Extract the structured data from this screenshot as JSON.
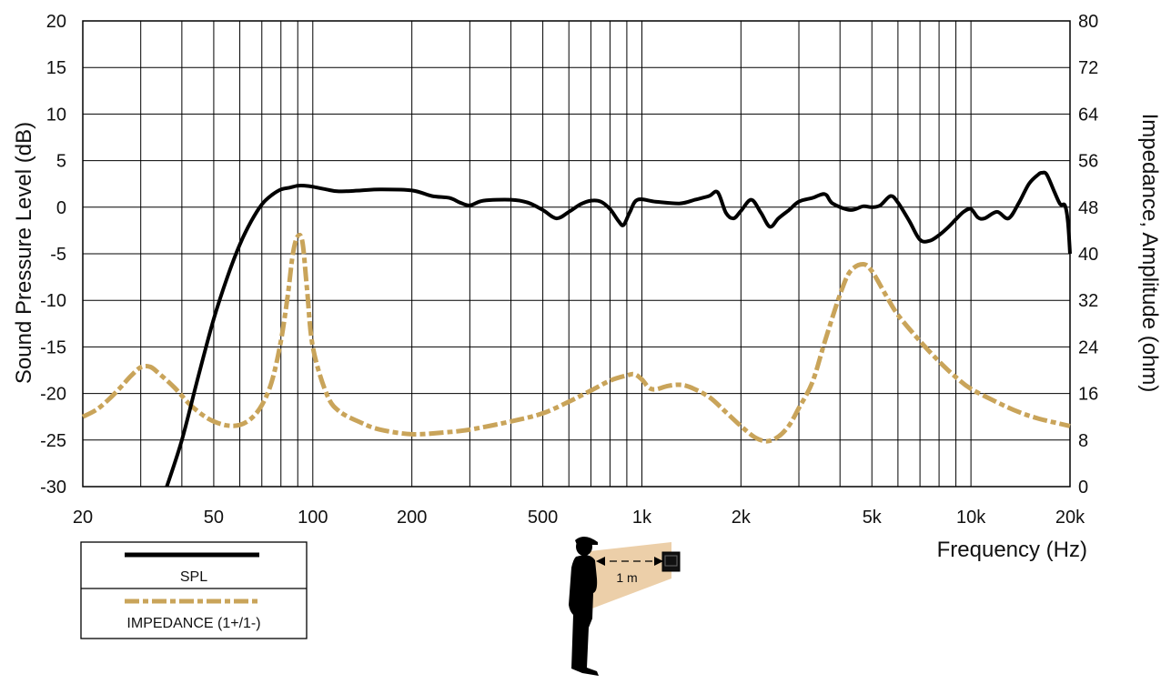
{
  "colors": {
    "spl": "#000000",
    "impedance": "#c9a45a",
    "grid": "#000000",
    "listener": "#000000",
    "cone": "#e9c79a"
  },
  "chart_data": {
    "type": "line",
    "x_scale": "log",
    "xlim": [
      20,
      20000
    ],
    "ylim_left": [
      -30,
      20
    ],
    "ylim_right": [
      0,
      80
    ],
    "grid": true,
    "x_tick_labels": [
      "20",
      "50",
      "100",
      "200",
      "500",
      "1k",
      "2k",
      "5k",
      "10k",
      "20k"
    ],
    "x_ticks": [
      20,
      50,
      100,
      200,
      500,
      1000,
      2000,
      5000,
      10000,
      20000
    ],
    "y_left_ticks": [
      20,
      15,
      10,
      5,
      0,
      -5,
      -10,
      -15,
      -20,
      -25,
      -30
    ],
    "y_right_ticks": [
      80,
      72,
      64,
      56,
      48,
      40,
      32,
      24,
      16,
      8,
      0
    ],
    "xlabel": "Frequency  (Hz)",
    "ylabel_left": "Sound Pressure Level (dB)",
    "ylabel_right": "Impedance, Amplitude  (ohm)",
    "legend_position": "bottom-left",
    "series": [
      {
        "name": "SPL",
        "axis": "left",
        "style": "solid",
        "points": [
          [
            36,
            -30
          ],
          [
            40,
            -25
          ],
          [
            45,
            -18
          ],
          [
            50,
            -12
          ],
          [
            55,
            -7.5
          ],
          [
            60,
            -4
          ],
          [
            65,
            -1.5
          ],
          [
            70,
            0.3
          ],
          [
            75,
            1.3
          ],
          [
            80,
            1.9
          ],
          [
            85,
            2.1
          ],
          [
            90,
            2.3
          ],
          [
            95,
            2.3
          ],
          [
            100,
            2.2
          ],
          [
            110,
            1.9
          ],
          [
            120,
            1.7
          ],
          [
            140,
            1.8
          ],
          [
            160,
            1.9
          ],
          [
            200,
            1.8
          ],
          [
            230,
            1.2
          ],
          [
            260,
            1.0
          ],
          [
            280,
            0.5
          ],
          [
            300,
            0.2
          ],
          [
            330,
            0.7
          ],
          [
            400,
            0.8
          ],
          [
            450,
            0.5
          ],
          [
            500,
            -0.3
          ],
          [
            550,
            -1.2
          ],
          [
            600,
            -0.5
          ],
          [
            650,
            0.3
          ],
          [
            700,
            0.7
          ],
          [
            750,
            0.6
          ],
          [
            800,
            -0.2
          ],
          [
            850,
            -1.5
          ],
          [
            880,
            -1.9
          ],
          [
            920,
            -0.5
          ],
          [
            970,
            0.8
          ],
          [
            1100,
            0.6
          ],
          [
            1300,
            0.4
          ],
          [
            1450,
            0.8
          ],
          [
            1600,
            1.2
          ],
          [
            1700,
            1.6
          ],
          [
            1800,
            -0.6
          ],
          [
            1900,
            -1.2
          ],
          [
            2000,
            -0.4
          ],
          [
            2150,
            0.8
          ],
          [
            2300,
            -0.6
          ],
          [
            2450,
            -2.1
          ],
          [
            2600,
            -1.2
          ],
          [
            2800,
            -0.3
          ],
          [
            3000,
            0.6
          ],
          [
            3300,
            1.0
          ],
          [
            3600,
            1.4
          ],
          [
            3800,
            0.4
          ],
          [
            4300,
            -0.3
          ],
          [
            4700,
            0.1
          ],
          [
            5000,
            0.0
          ],
          [
            5300,
            0.2
          ],
          [
            5700,
            1.2
          ],
          [
            6000,
            0.5
          ],
          [
            6500,
            -1.5
          ],
          [
            7000,
            -3.5
          ],
          [
            7500,
            -3.6
          ],
          [
            8000,
            -3.0
          ],
          [
            8500,
            -2.2
          ],
          [
            9000,
            -1.3
          ],
          [
            9500,
            -0.5
          ],
          [
            10000,
            -0.2
          ],
          [
            10500,
            -1.1
          ],
          [
            11000,
            -1.2
          ],
          [
            12000,
            -0.5
          ],
          [
            13000,
            -1.2
          ],
          [
            14000,
            0.5
          ],
          [
            15000,
            2.5
          ],
          [
            16000,
            3.5
          ],
          [
            16500,
            3.7
          ],
          [
            17000,
            3.5
          ],
          [
            18000,
            1.5
          ],
          [
            18700,
            0.3
          ],
          [
            19300,
            0.2
          ],
          [
            19700,
            -1.5
          ],
          [
            20000,
            -5
          ]
        ]
      },
      {
        "name": "IMPEDANCE (1+/1-)",
        "axis": "right",
        "style": "dash-dot",
        "points": [
          [
            20,
            12
          ],
          [
            22,
            13.2
          ],
          [
            24,
            15
          ],
          [
            26,
            17
          ],
          [
            28,
            19
          ],
          [
            30,
            20.5
          ],
          [
            32,
            20.6
          ],
          [
            34,
            19.5
          ],
          [
            38,
            17
          ],
          [
            42,
            14.3
          ],
          [
            46,
            12.4
          ],
          [
            50,
            11.2
          ],
          [
            55,
            10.5
          ],
          [
            60,
            10.6
          ],
          [
            65,
            11.7
          ],
          [
            70,
            14
          ],
          [
            75,
            18
          ],
          [
            80,
            25
          ],
          [
            84,
            33
          ],
          [
            87,
            40
          ],
          [
            90,
            43
          ],
          [
            93,
            42
          ],
          [
            96,
            34
          ],
          [
            100,
            24
          ],
          [
            110,
            16
          ],
          [
            120,
            13
          ],
          [
            140,
            11
          ],
          [
            160,
            9.8
          ],
          [
            200,
            9
          ],
          [
            250,
            9.3
          ],
          [
            300,
            9.8
          ],
          [
            400,
            11.2
          ],
          [
            500,
            12.6
          ],
          [
            600,
            14.6
          ],
          [
            700,
            16.5
          ],
          [
            800,
            18.2
          ],
          [
            900,
            19.1
          ],
          [
            950,
            19.3
          ],
          [
            1000,
            18.4
          ],
          [
            1050,
            17
          ],
          [
            1100,
            16.7
          ],
          [
            1200,
            17.3
          ],
          [
            1300,
            17.5
          ],
          [
            1400,
            17.1
          ],
          [
            1600,
            15.4
          ],
          [
            1800,
            12.8
          ],
          [
            2000,
            10.4
          ],
          [
            2200,
            8.5
          ],
          [
            2400,
            7.8
          ],
          [
            2600,
            8.6
          ],
          [
            2800,
            10.5
          ],
          [
            3000,
            13.5
          ],
          [
            3300,
            18
          ],
          [
            3600,
            25
          ],
          [
            4000,
            33
          ],
          [
            4300,
            37
          ],
          [
            4700,
            38.2
          ],
          [
            5000,
            37
          ],
          [
            5500,
            33
          ],
          [
            6000,
            29.5
          ],
          [
            7000,
            25
          ],
          [
            8000,
            21.5
          ],
          [
            9000,
            18.8
          ],
          [
            10000,
            16.8
          ],
          [
            12000,
            14.5
          ],
          [
            14000,
            12.8
          ],
          [
            16000,
            11.7
          ],
          [
            18000,
            11
          ],
          [
            20000,
            10.4
          ]
        ]
      }
    ],
    "legend": [
      {
        "label": "SPL"
      },
      {
        "label": "IMPEDANCE (1+/1-)"
      }
    ],
    "annotation": {
      "distance_label": "1 m"
    }
  }
}
